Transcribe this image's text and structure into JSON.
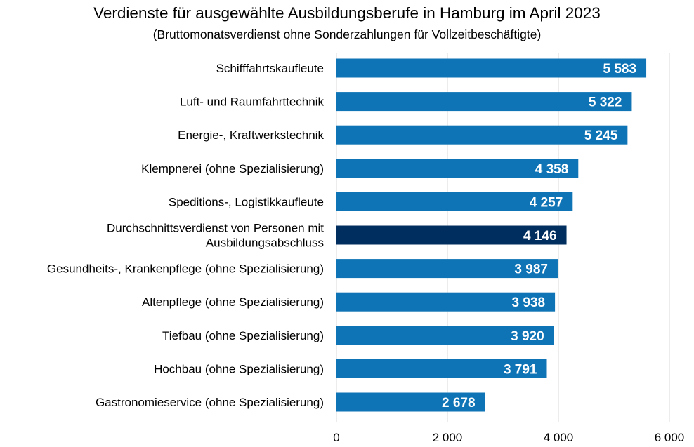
{
  "chart_data": {
    "type": "bar",
    "orientation": "horizontal",
    "title": "Verdienste für ausgewählte Ausbildungsberufe in Hamburg im April 2023",
    "subtitle": "(Bruttomonatsverdienst ohne Sonderzahlungen für Vollzeitbeschäftigte)",
    "categories": [
      [
        "Schifffahrtskaufleute"
      ],
      [
        "Luft- und Raumfahrttechnik"
      ],
      [
        "Energie-, Kraftwerkstechnik"
      ],
      [
        "Klempnerei (ohne Spezialisierung)"
      ],
      [
        "Speditions-, Logistikkaufleute"
      ],
      [
        "Durchschnittsverdienst von Personen mit",
        "Ausbildungsabschluss"
      ],
      [
        "Gesundheits-, Krankenpflege (ohne Spezialisierung)"
      ],
      [
        "Altenpflege (ohne Spezialisierung)"
      ],
      [
        "Tiefbau (ohne Spezialisierung)"
      ],
      [
        "Hochbau (ohne Spezialisierung)"
      ],
      [
        "Gastronomieservice (ohne Spezialisierung)"
      ]
    ],
    "values": [
      5583,
      5322,
      5245,
      4358,
      4257,
      4146,
      3987,
      3938,
      3920,
      3791,
      2678
    ],
    "value_labels": [
      "5 583",
      "5 322",
      "5 245",
      "4 358",
      "4 257",
      "4 146",
      "3 987",
      "3 938",
      "3 920",
      "3 791",
      "2 678"
    ],
    "highlight_index": 5,
    "xlim": [
      0,
      6000
    ],
    "xticks": [
      0,
      2000,
      4000,
      6000
    ],
    "xtick_labels": [
      "0",
      "2 000",
      "4 000",
      "6 000"
    ],
    "grid": "vertical",
    "colors": {
      "bar": "#0f74b5",
      "highlight": "#002f5f",
      "grid": "#d9d9d9",
      "value_text": "#ffffff"
    }
  }
}
